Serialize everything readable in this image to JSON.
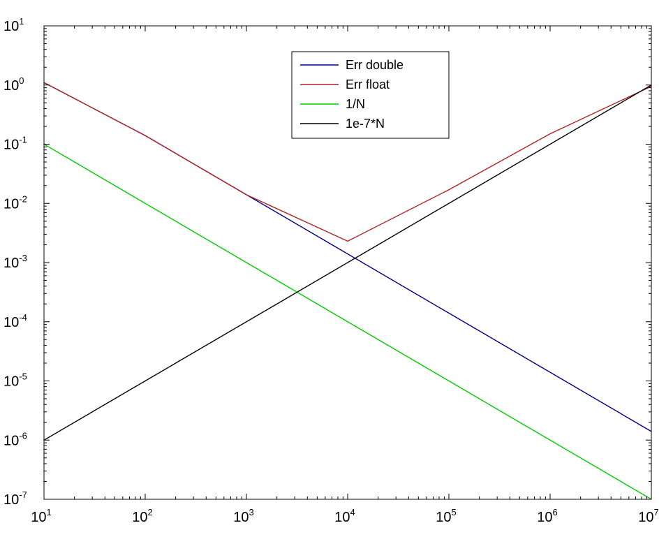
{
  "chart_data": {
    "type": "line",
    "title": "",
    "xlabel": "",
    "ylabel": "",
    "x_scale": "log",
    "y_scale": "log",
    "xlim": [
      10,
      10000000
    ],
    "ylim": [
      1e-07,
      10
    ],
    "grid": false,
    "legend_position": "top-center",
    "x_ticks": [
      {
        "base": "10",
        "exp": "1",
        "value": 10
      },
      {
        "base": "10",
        "exp": "2",
        "value": 100
      },
      {
        "base": "10",
        "exp": "3",
        "value": 1000
      },
      {
        "base": "10",
        "exp": "4",
        "value": 10000
      },
      {
        "base": "10",
        "exp": "5",
        "value": 100000
      },
      {
        "base": "10",
        "exp": "6",
        "value": 1000000
      },
      {
        "base": "10",
        "exp": "7",
        "value": 10000000
      }
    ],
    "y_ticks": [
      {
        "base": "10",
        "exp": "1",
        "value": 10
      },
      {
        "base": "10",
        "exp": "0",
        "value": 1
      },
      {
        "base": "10",
        "exp": "-1",
        "value": 0.1
      },
      {
        "base": "10",
        "exp": "-2",
        "value": 0.01
      },
      {
        "base": "10",
        "exp": "-3",
        "value": 0.001
      },
      {
        "base": "10",
        "exp": "-4",
        "value": 0.0001
      },
      {
        "base": "10",
        "exp": "-5",
        "value": 1e-05
      },
      {
        "base": "10",
        "exp": "-6",
        "value": 1e-06
      },
      {
        "base": "10",
        "exp": "-7",
        "value": 1e-07
      }
    ],
    "series": [
      {
        "name": "Err double",
        "color": "#00008b",
        "points": [
          [
            10,
            1.1
          ],
          [
            100,
            0.14
          ],
          [
            1000,
            0.014
          ],
          [
            10000,
            0.0014
          ],
          [
            100000,
            0.00014
          ],
          [
            1000000,
            1.4e-05
          ],
          [
            10000000,
            1.4e-06
          ]
        ]
      },
      {
        "name": "Err float",
        "color": "#b22222",
        "points": [
          [
            10,
            1.1
          ],
          [
            100,
            0.14
          ],
          [
            1000,
            0.014
          ],
          [
            10000,
            0.0023
          ],
          [
            100000,
            0.017
          ],
          [
            1000000,
            0.15
          ],
          [
            10000000,
            0.95
          ]
        ]
      },
      {
        "name": "1/N",
        "color": "#00cc00",
        "points": [
          [
            10,
            0.1
          ],
          [
            10000000,
            1e-07
          ]
        ]
      },
      {
        "name": "1e-7*N",
        "color": "#000000",
        "points": [
          [
            10,
            1e-06
          ],
          [
            10000000,
            1
          ]
        ]
      }
    ]
  }
}
